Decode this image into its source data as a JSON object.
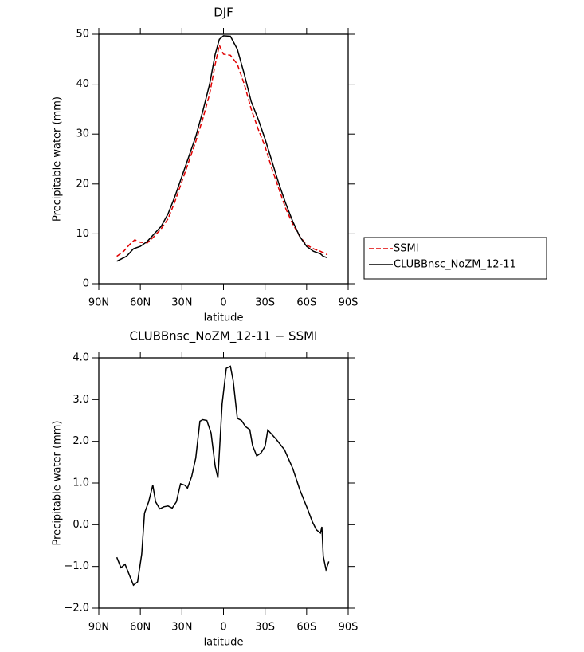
{
  "chart_data": [
    {
      "type": "line",
      "title": "DJF",
      "xlabel": "latitude",
      "ylabel": "Precipitable water (mm)",
      "xlim": [
        90,
        -90
      ],
      "xticks": [
        {
          "value": 90,
          "label": "90N"
        },
        {
          "value": 60,
          "label": "60N"
        },
        {
          "value": 30,
          "label": "30N"
        },
        0,
        {
          "value": -30,
          "label": "30S"
        },
        {
          "value": -60,
          "label": "60S"
        },
        {
          "value": -90,
          "label": "90S"
        }
      ],
      "ylim": [
        0,
        50
      ],
      "yticks": [
        0,
        10,
        20,
        30,
        40,
        50
      ],
      "legend": "right",
      "series": [
        {
          "name": "SSMI",
          "color": "#e00000",
          "linestyle": "dashed",
          "x": [
            77,
            72,
            68,
            64,
            60,
            55,
            50,
            45,
            40,
            35,
            30,
            25,
            20,
            15,
            10,
            6,
            3,
            0,
            -5,
            -10,
            -15,
            -20,
            -25,
            -30,
            -35,
            -40,
            -45,
            -50,
            -55,
            -60,
            -65,
            -70,
            -75
          ],
          "values": [
            5.5,
            6.5,
            7.8,
            8.8,
            8.3,
            8.2,
            9.5,
            11,
            13,
            16.5,
            20.5,
            24.5,
            28.5,
            33,
            38,
            44,
            47.8,
            46,
            45.8,
            44,
            40,
            35,
            31,
            27.5,
            23,
            19,
            15,
            12,
            9.5,
            7.8,
            7,
            6.5,
            5.8
          ]
        },
        {
          "name": "CLUBBnsc_NoZM_12-11",
          "color": "#000000",
          "linestyle": "solid",
          "x": [
            77,
            70,
            65,
            60,
            55,
            50,
            45,
            40,
            35,
            30,
            25,
            20,
            15,
            10,
            6,
            3,
            0,
            -5,
            -10,
            -15,
            -20,
            -25,
            -30,
            -35,
            -40,
            -45,
            -50,
            -55,
            -60,
            -65,
            -70,
            -72,
            -75
          ],
          "values": [
            4.5,
            5.5,
            7,
            7.5,
            8.5,
            10,
            11.5,
            14,
            17.5,
            21.5,
            25.5,
            29.5,
            34.5,
            40,
            46,
            49,
            49.7,
            49.6,
            47,
            42,
            36.5,
            33,
            29,
            24.5,
            20,
            16,
            12.5,
            9.5,
            7.5,
            6.5,
            6,
            5.5,
            5.2
          ]
        }
      ]
    },
    {
      "type": "line",
      "title": "CLUBBnsc_NoZM_12-11 − SSMI",
      "xlabel": "latitude",
      "ylabel": "Precipitable water (mm)",
      "xlim": [
        90,
        -90
      ],
      "xticks": [
        {
          "value": 90,
          "label": "90N"
        },
        {
          "value": 60,
          "label": "60N"
        },
        {
          "value": 30,
          "label": "30N"
        },
        0,
        {
          "value": -30,
          "label": "30S"
        },
        {
          "value": -60,
          "label": "60S"
        },
        {
          "value": -90,
          "label": "90S"
        }
      ],
      "ylim": [
        -2,
        4
      ],
      "yticks": [
        {
          "value": -2,
          "label": "−2.0"
        },
        {
          "value": -1,
          "label": "−1.0"
        },
        {
          "value": 0,
          "label": "0.0"
        },
        {
          "value": 1,
          "label": "1.0"
        },
        {
          "value": 2,
          "label": "2.0"
        },
        {
          "value": 3,
          "label": "3.0"
        },
        {
          "value": 4,
          "label": "4.0"
        }
      ],
      "series": [
        {
          "color": "#000000",
          "linestyle": "solid",
          "x": [
            77,
            74,
            71,
            68,
            65,
            62,
            59,
            57,
            54,
            51,
            49,
            46,
            43,
            40,
            37,
            34,
            31,
            28,
            26,
            23,
            20,
            17,
            15,
            12,
            9,
            6,
            4,
            1,
            -2,
            -5,
            -7,
            -10,
            -13,
            -16,
            -19,
            -21,
            -24,
            -27,
            -30,
            -32,
            -38,
            -44,
            -50,
            -55,
            -61,
            -64,
            -67,
            -70,
            -71,
            -72,
            -74,
            -76
          ],
          "values": [
            -0.78,
            -1.03,
            -0.95,
            -1.2,
            -1.45,
            -1.37,
            -0.7,
            0.28,
            0.55,
            0.95,
            0.55,
            0.38,
            0.43,
            0.45,
            0.4,
            0.55,
            0.98,
            0.95,
            0.88,
            1.15,
            1.6,
            2.48,
            2.52,
            2.5,
            2.2,
            1.4,
            1.12,
            2.9,
            3.75,
            3.8,
            3.45,
            2.55,
            2.5,
            2.35,
            2.28,
            1.9,
            1.65,
            1.72,
            1.88,
            2.27,
            2.05,
            1.8,
            1.35,
            0.85,
            0.35,
            0.08,
            -0.12,
            -0.2,
            -0.05,
            -0.75,
            -1.08,
            -0.88
          ]
        }
      ]
    }
  ]
}
